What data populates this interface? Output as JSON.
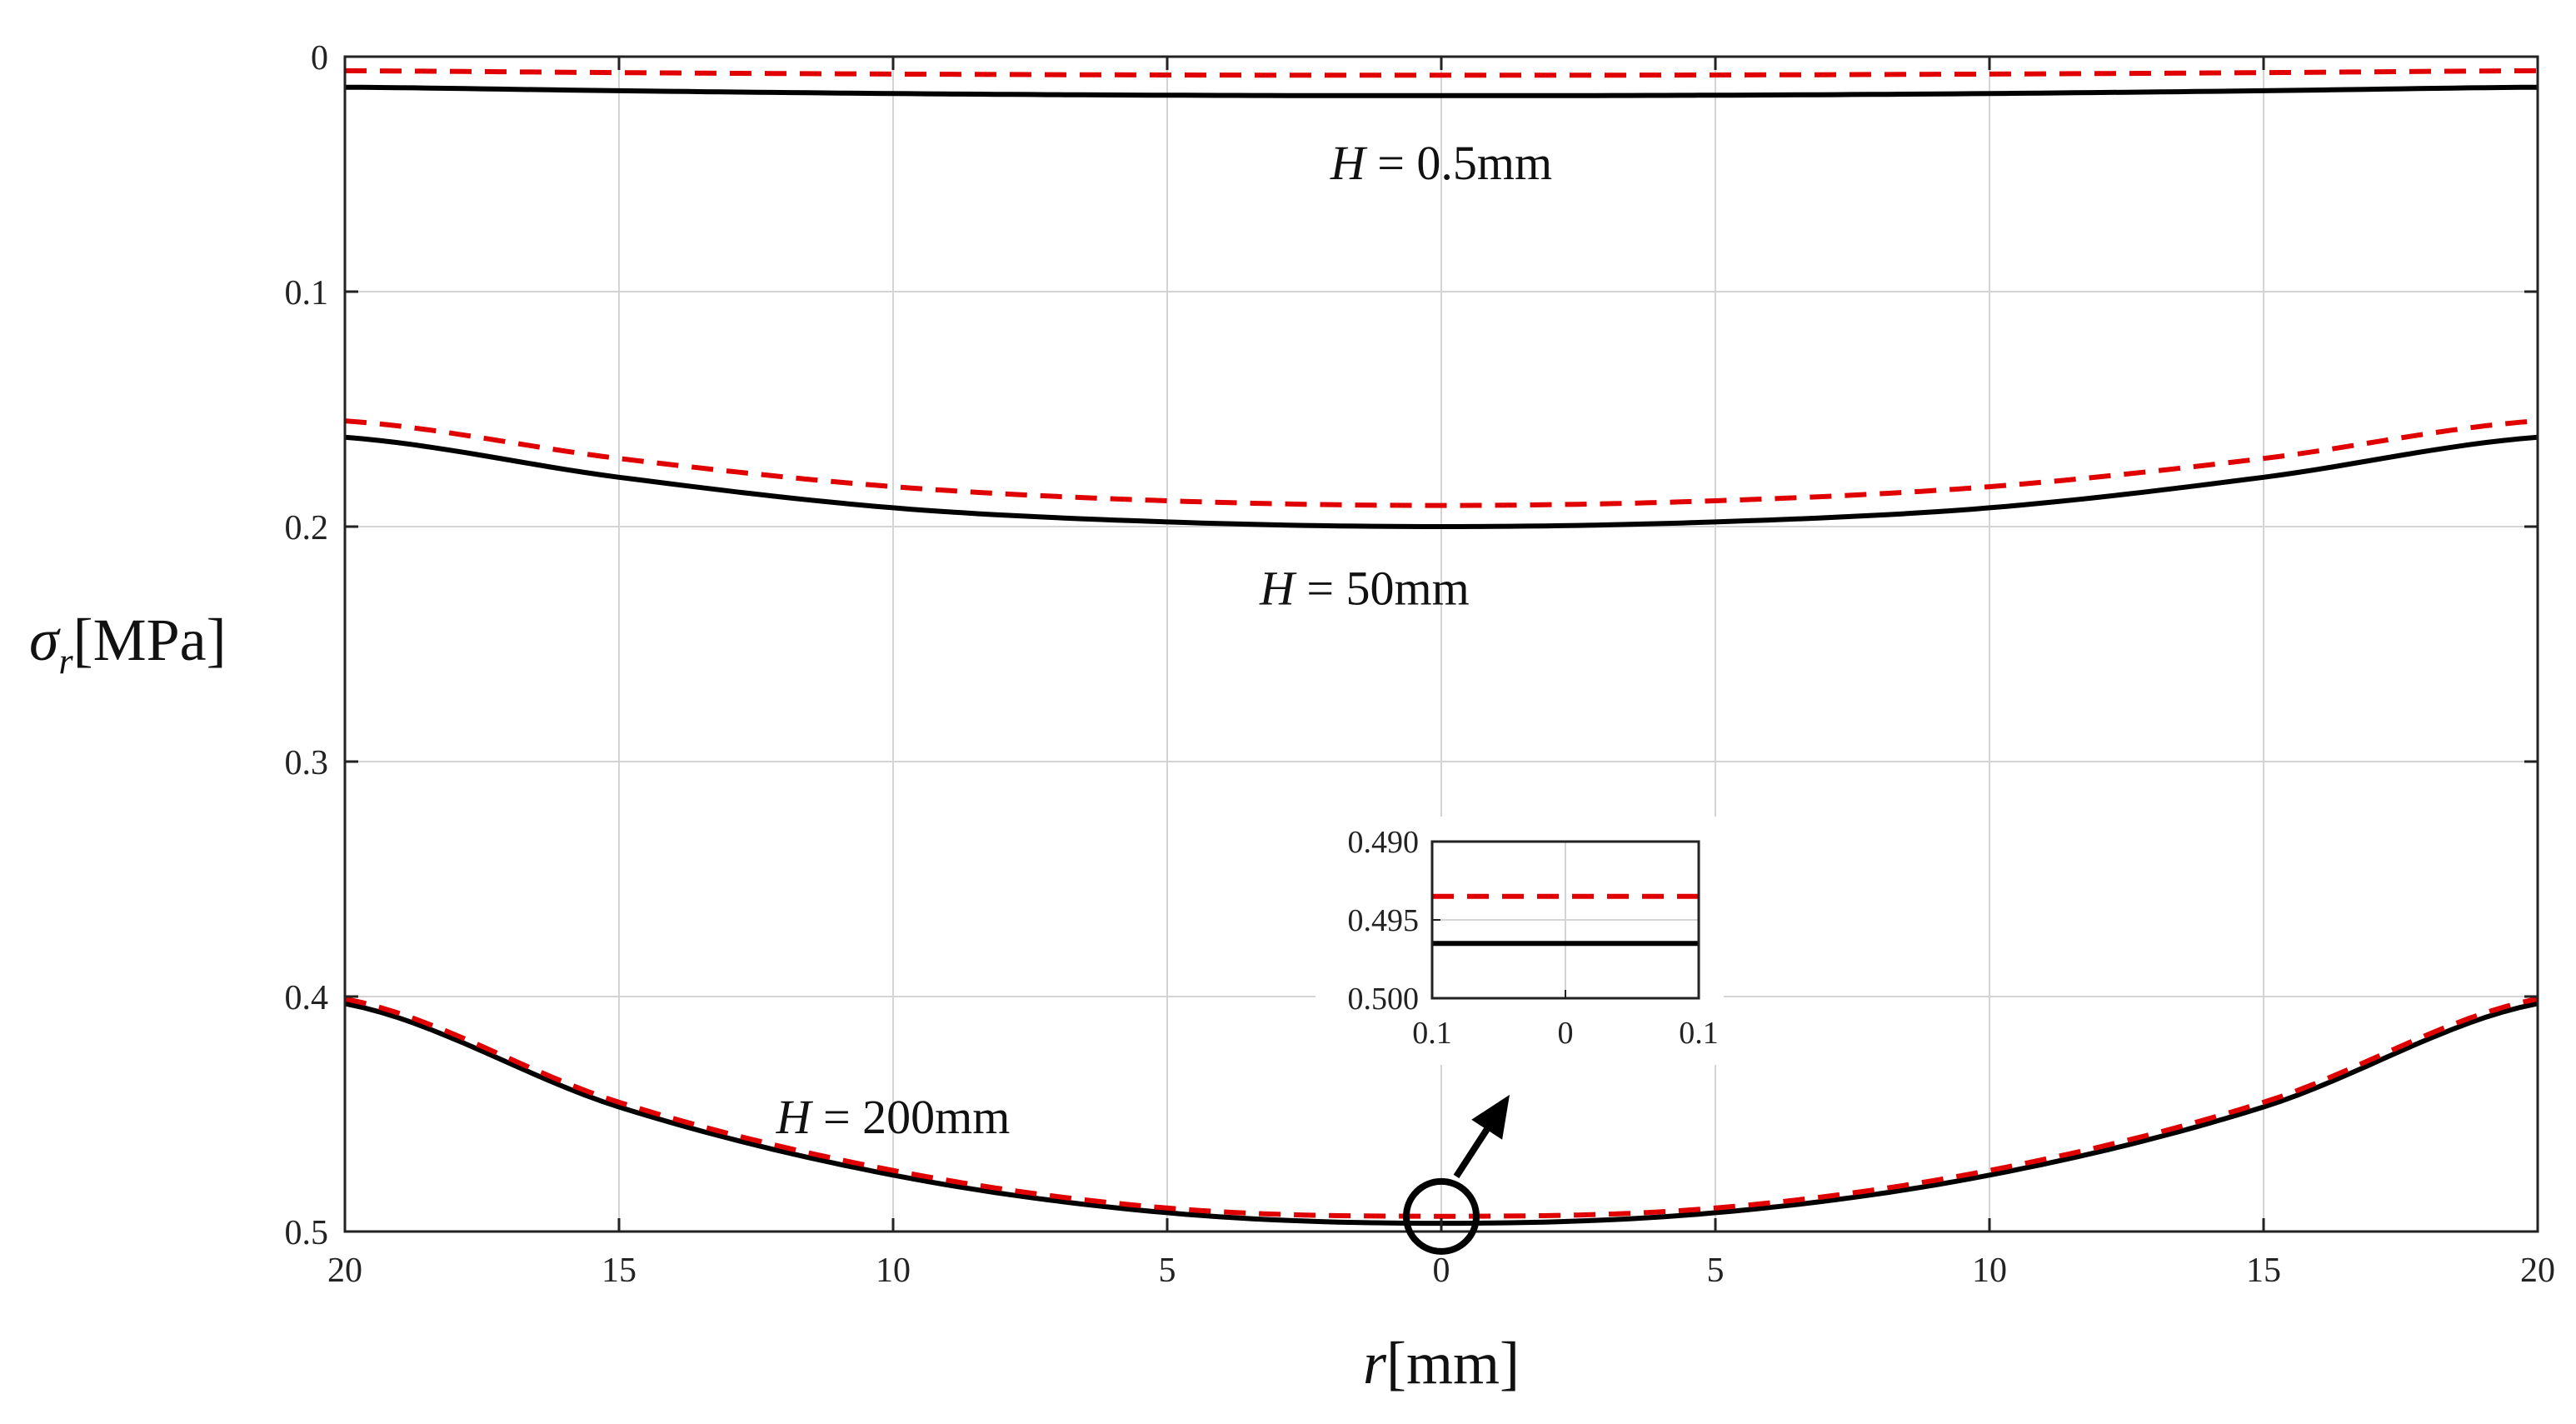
{
  "chart_data": {
    "type": "line",
    "title": "",
    "xlabel": "r[mm]",
    "ylabel": "σr[MPa]",
    "xlabel_main": "r",
    "xlabel_unit": "[mm]",
    "ylabel_main": "σ",
    "ylabel_sub": "r",
    "ylabel_unit": "[MPa]",
    "xlim": [
      -20,
      20
    ],
    "ylim": [
      0,
      0.5
    ],
    "y_inverted": true,
    "grid": true,
    "x_ticks": [
      -20,
      -15,
      -10,
      -5,
      0,
      5,
      10,
      15,
      20
    ],
    "x_tick_labels": [
      "20",
      "15",
      "10",
      "5",
      "0",
      "5",
      "10",
      "15",
      "20"
    ],
    "y_ticks": [
      0,
      0.1,
      0.2,
      0.3,
      0.4,
      0.5
    ],
    "y_tick_labels": [
      "0",
      "0.1",
      "0.2",
      "0.3",
      "0.4",
      "0.5"
    ],
    "series": [
      {
        "name": "H=0.5mm solid",
        "style": "solid",
        "color": "#000000",
        "x": [
          -20,
          -15,
          -10,
          -5,
          0,
          5,
          10,
          15,
          20
        ],
        "values": [
          0.013,
          0.0145,
          0.0157,
          0.0164,
          0.0166,
          0.0164,
          0.0157,
          0.0145,
          0.013
        ]
      },
      {
        "name": "H=0.5mm dashed",
        "style": "dashed",
        "color": "#e00000",
        "x": [
          -20,
          -15,
          -10,
          -5,
          0,
          5,
          10,
          15,
          20
        ],
        "values": [
          0.006,
          0.0068,
          0.0074,
          0.0078,
          0.0079,
          0.0078,
          0.0074,
          0.0068,
          0.006
        ]
      },
      {
        "name": "H=50mm solid",
        "style": "solid",
        "color": "#000000",
        "x": [
          -20,
          -15,
          -10,
          -5,
          0,
          5,
          10,
          15,
          20
        ],
        "values": [
          0.162,
          0.179,
          0.192,
          0.198,
          0.2,
          0.198,
          0.192,
          0.179,
          0.162
        ]
      },
      {
        "name": "H=50mm dashed",
        "style": "dashed",
        "color": "#e00000",
        "x": [
          -20,
          -15,
          -10,
          -5,
          0,
          5,
          10,
          15,
          20
        ],
        "values": [
          0.155,
          0.171,
          0.183,
          0.189,
          0.191,
          0.189,
          0.183,
          0.171,
          0.155
        ]
      },
      {
        "name": "H=200mm solid",
        "style": "solid",
        "color": "#000000",
        "x": [
          -20,
          -15,
          -10,
          -5,
          0,
          5,
          10,
          15,
          20
        ],
        "values": [
          0.403,
          0.447,
          0.476,
          0.492,
          0.4965,
          0.492,
          0.476,
          0.447,
          0.403
        ]
      },
      {
        "name": "H=200mm dashed",
        "style": "dashed",
        "color": "#e00000",
        "x": [
          -20,
          -15,
          -10,
          -5,
          0,
          5,
          10,
          15,
          20
        ],
        "values": [
          0.401,
          0.445,
          0.474,
          0.49,
          0.4935,
          0.49,
          0.474,
          0.445,
          0.401
        ]
      }
    ],
    "annotations": [
      {
        "id": "h05",
        "italic": "H",
        "rest": " = 0.5mm",
        "x": 0,
        "y": 0.045
      },
      {
        "id": "h50",
        "italic": "H",
        "rest": " = 50mm",
        "x": -1.4,
        "y": 0.226
      },
      {
        "id": "h200",
        "italic": "H",
        "rest": " = 200mm",
        "x": -10,
        "y": 0.451
      }
    ],
    "inset": {
      "xlim": [
        -0.1,
        0.1
      ],
      "ylim": [
        0.49,
        0.5
      ],
      "y_inverted": true,
      "x_ticks": [
        -0.1,
        0,
        0.1
      ],
      "x_tick_labels": [
        "0.1",
        "0",
        "0.1"
      ],
      "y_ticks": [
        0.49,
        0.495,
        0.5
      ],
      "y_tick_labels": [
        "0.490",
        "0.495",
        "0.500"
      ],
      "series": [
        {
          "name": "dashed",
          "style": "dashed",
          "color": "#e00000",
          "x": [
            -0.1,
            0.1
          ],
          "values": [
            0.4935,
            0.4935
          ]
        },
        {
          "name": "solid",
          "style": "solid",
          "color": "#000000",
          "x": [
            -0.1,
            0.1
          ],
          "values": [
            0.4965,
            0.4965
          ]
        }
      ]
    },
    "zoom_marker": {
      "x": 0,
      "y": 0.495
    }
  }
}
